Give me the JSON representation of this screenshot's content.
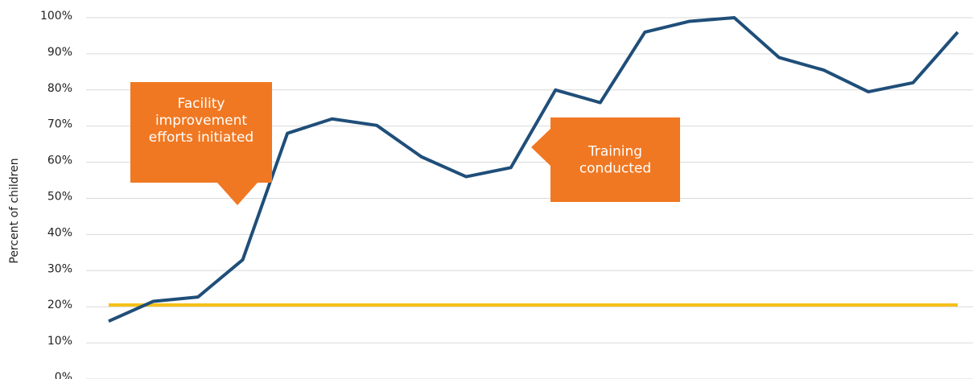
{
  "chart_data": {
    "type": "line",
    "y_label": "Percent of children",
    "categories": [
      null,
      null,
      null,
      null,
      null,
      null,
      null,
      null,
      null,
      null,
      null,
      null,
      null,
      null,
      null,
      null,
      null,
      null,
      null,
      null
    ],
    "series": [
      {
        "color": "#1f4e79",
        "values": [
          16,
          21.5,
          22.7,
          33,
          68,
          72,
          70.2,
          61.5,
          56,
          58.5,
          80,
          76.5,
          96,
          99,
          100,
          89,
          85.5,
          79.5,
          82,
          96
        ]
      },
      {
        "color": "#f5c11a",
        "values": [
          20.5,
          20.5,
          20.5,
          20.5,
          20.5,
          20.5,
          20.5,
          20.5,
          20.5,
          20.5,
          20.5,
          20.5,
          20.5,
          20.5,
          20.5,
          20.5,
          20.5,
          20.5,
          20.5,
          20.5
        ]
      }
    ],
    "ylim": [
      0,
      100
    ],
    "yticks": [
      {
        "value": 0,
        "label": "0%"
      },
      {
        "value": 10,
        "label": "10%"
      },
      {
        "value": 20,
        "label": "20%"
      },
      {
        "value": 30,
        "label": "30%"
      },
      {
        "value": 40,
        "label": "40%"
      },
      {
        "value": 50,
        "label": "50%"
      },
      {
        "value": 60,
        "label": "60%"
      },
      {
        "value": 70,
        "label": "70%"
      },
      {
        "value": 80,
        "label": "80%"
      },
      {
        "value": 90,
        "label": "90%"
      },
      {
        "value": 100,
        "label": "100%"
      }
    ],
    "grid": true,
    "annotations": [
      {
        "lines": [
          "Facility",
          "improvement",
          "efforts initiated"
        ],
        "color": "#f07822"
      },
      {
        "lines": [
          "Training",
          "conducted"
        ],
        "color": "#f07822"
      }
    ]
  }
}
